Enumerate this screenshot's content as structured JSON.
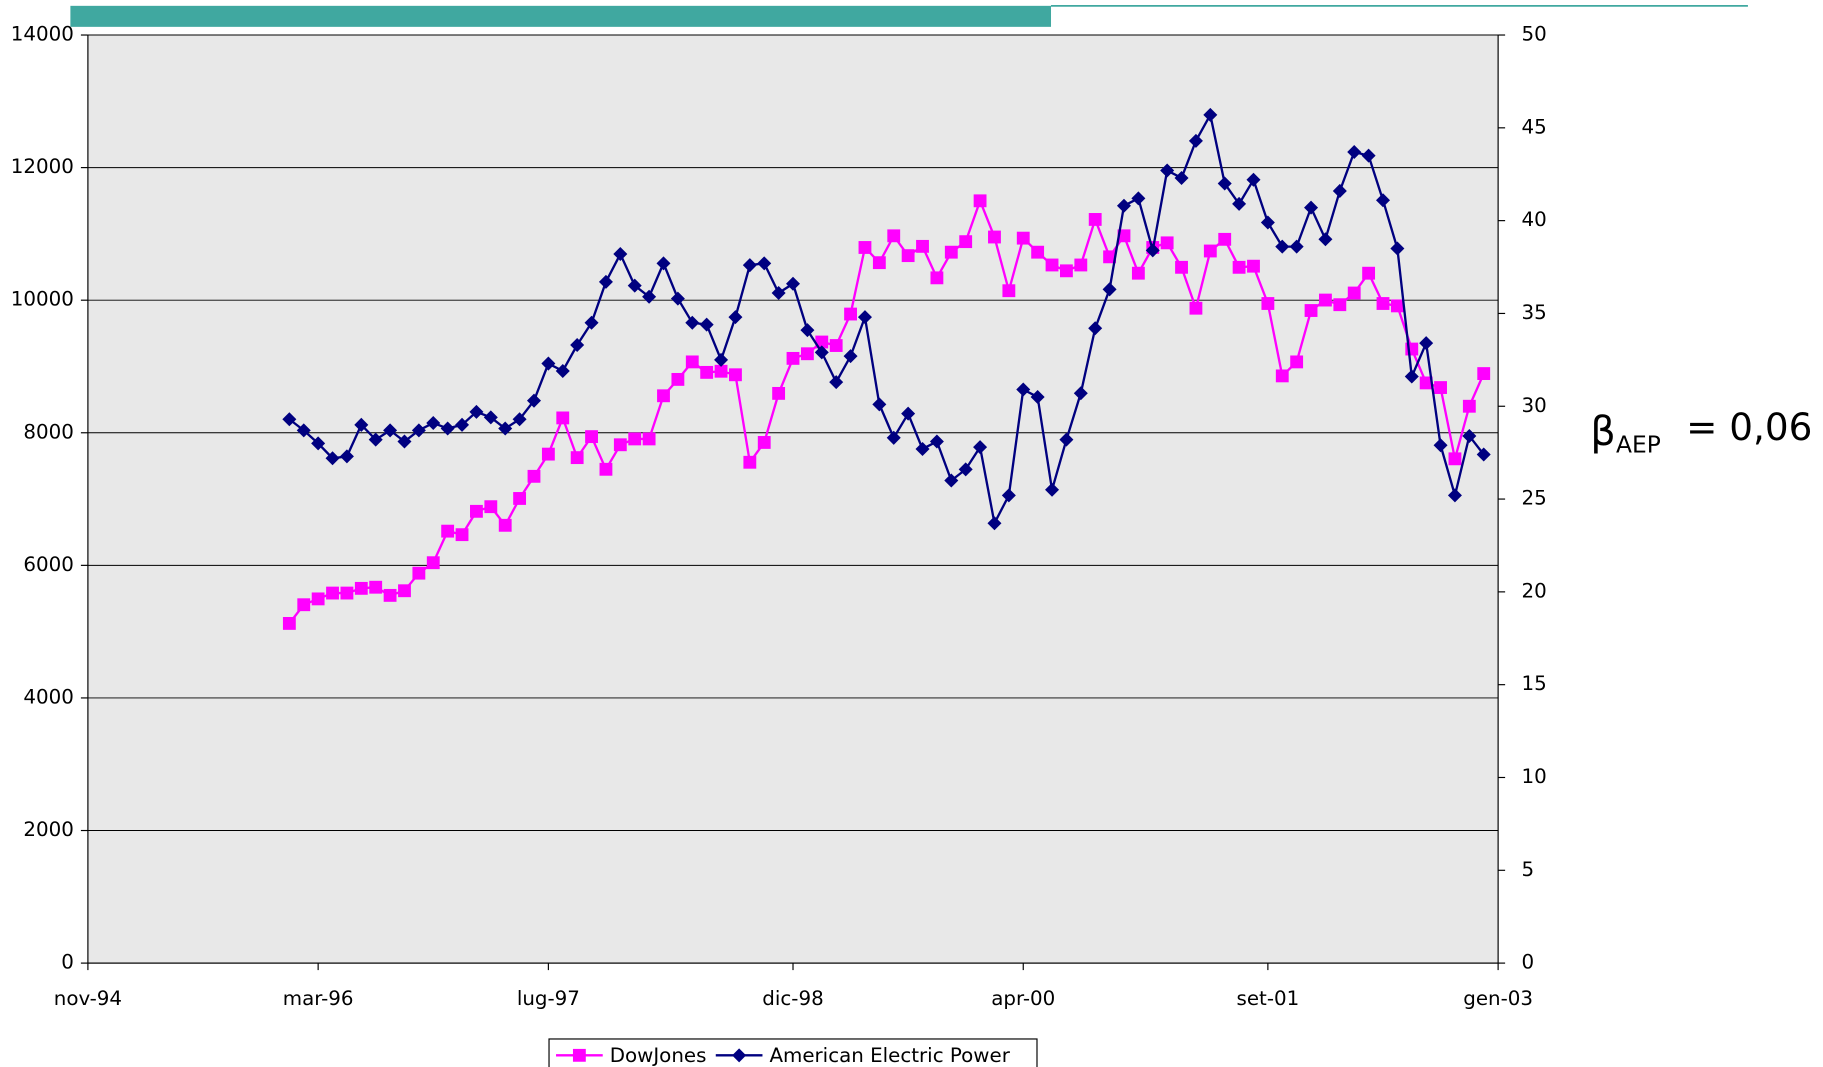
{
  "chart_data": {
    "type": "line",
    "x": [
      "1996-01",
      "1996-02",
      "1996-03",
      "1996-04",
      "1996-05",
      "1996-06",
      "1996-07",
      "1996-08",
      "1996-09",
      "1996-10",
      "1996-11",
      "1996-12",
      "1997-01",
      "1997-02",
      "1997-03",
      "1997-04",
      "1997-05",
      "1997-06",
      "1997-07",
      "1997-08",
      "1997-09",
      "1997-10",
      "1997-11",
      "1997-12",
      "1998-01",
      "1998-02",
      "1998-03",
      "1998-04",
      "1998-05",
      "1998-06",
      "1998-07",
      "1998-08",
      "1998-09",
      "1998-10",
      "1998-11",
      "1998-12",
      "1999-01",
      "1999-02",
      "1999-03",
      "1999-04",
      "1999-05",
      "1999-06",
      "1999-07",
      "1999-08",
      "1999-09",
      "1999-10",
      "1999-11",
      "1999-12",
      "2000-01",
      "2000-02",
      "2000-03",
      "2000-04",
      "2000-05",
      "2000-06",
      "2000-07",
      "2000-08",
      "2000-09",
      "2000-10",
      "2000-11",
      "2000-12",
      "2001-01",
      "2001-02",
      "2001-03",
      "2001-04",
      "2001-05",
      "2001-06",
      "2001-07",
      "2001-08",
      "2001-09",
      "2001-10",
      "2001-11",
      "2001-12",
      "2002-01",
      "2002-02",
      "2002-03",
      "2002-04",
      "2002-05",
      "2002-06",
      "2002-07",
      "2002-08",
      "2002-09",
      "2002-10",
      "2002-11",
      "2002-12"
    ],
    "series": [
      {
        "name": "DowJones",
        "color": "#ff00ff",
        "marker": "square",
        "values": [
          5124,
          5406,
          5494,
          5582,
          5582,
          5653,
          5670,
          5547,
          5617,
          5882,
          6040,
          6516,
          6463,
          6815,
          6885,
          6604,
          7009,
          7343,
          7678,
          8224,
          7625,
          7942,
          7449,
          7819,
          7907,
          7907,
          8558,
          8805,
          9069,
          8911,
          8928,
          8875,
          7555,
          7854,
          8594,
          9122,
          9192,
          9369,
          9316,
          9791,
          10795,
          10566,
          10971,
          10672,
          10812,
          10337,
          10724,
          10883,
          11499,
          10953,
          10143,
          10936,
          10724,
          10531,
          10443,
          10531,
          11218,
          10654,
          10971,
          10407,
          10795,
          10865,
          10496,
          9879,
          10742,
          10918,
          10496,
          10513,
          9950,
          8858,
          9069,
          9844,
          10002,
          9932,
          10108,
          10407,
          9950,
          9914,
          9263,
          8752,
          8682,
          7607,
          8400,
          8893
        ]
      },
      {
        "name": "American Electric Power",
        "color": "#000080",
        "marker": "diamond",
        "axis": "y2",
        "values": [
          29.3,
          28.7,
          28.0,
          27.2,
          27.3,
          29.0,
          28.2,
          28.7,
          28.1,
          28.7,
          29.1,
          28.8,
          29.0,
          29.7,
          29.4,
          28.8,
          29.3,
          30.3,
          32.3,
          31.9,
          33.3,
          34.5,
          36.7,
          38.2,
          36.5,
          35.9,
          37.7,
          35.8,
          34.5,
          34.4,
          32.5,
          34.8,
          37.6,
          37.7,
          36.1,
          36.6,
          34.1,
          32.9,
          31.3,
          32.7,
          34.8,
          30.1,
          28.3,
          29.6,
          27.7,
          28.1,
          26.0,
          26.6,
          27.8,
          23.7,
          25.2,
          30.9,
          30.5,
          25.5,
          28.2,
          30.7,
          34.2,
          36.3,
          40.8,
          41.2,
          38.4,
          42.7,
          42.3,
          44.3,
          45.7,
          42.0,
          40.9,
          42.2,
          39.9,
          38.6,
          38.6,
          40.7,
          39.0,
          41.6,
          43.7,
          43.5,
          41.1,
          38.5,
          31.6,
          33.4,
          27.9,
          25.2,
          28.4,
          27.4
        ]
      }
    ],
    "xlim": [
      "1994-11",
      "2003-01"
    ],
    "xticks": [
      {
        "value": "1994-11",
        "label": "nov-94"
      },
      {
        "value": "1996-03",
        "label": "mar-96"
      },
      {
        "value": "1997-07",
        "label": "lug-97"
      },
      {
        "value": "1998-12",
        "label": "dic-98"
      },
      {
        "value": "2000-04",
        "label": "apr-00"
      },
      {
        "value": "2001-09",
        "label": "set-01"
      },
      {
        "value": "2003-01",
        "label": "gen-03"
      }
    ],
    "ylim": [
      0,
      14000
    ],
    "yticks": [
      0,
      2000,
      4000,
      6000,
      8000,
      10000,
      12000,
      14000
    ],
    "y2lim": [
      0,
      50
    ],
    "y2ticks": [
      0,
      5,
      10,
      15,
      20,
      25,
      30,
      35,
      40,
      45,
      50
    ],
    "grid": true,
    "legend": "bottom",
    "annotation": {
      "symbol": "β",
      "subscript": "AEP",
      "text": "= 0,06"
    }
  }
}
